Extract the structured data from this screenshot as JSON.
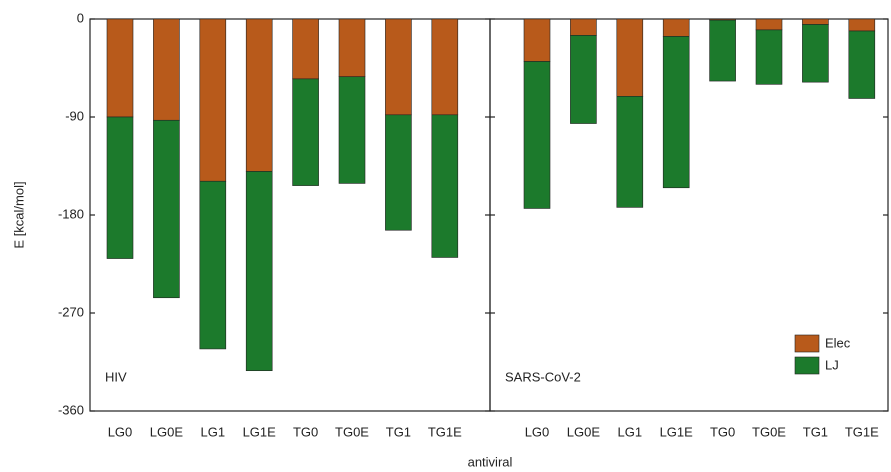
{
  "chart_data": {
    "type": "bar",
    "stacked": true,
    "ylabel": "E [kcal/mol]",
    "xlabel": "antiviral",
    "ylim": [
      -360,
      0
    ],
    "yticks": [
      0,
      -90,
      -180,
      -270,
      -360
    ],
    "legend": "lower right",
    "panels": [
      {
        "label": "HIV",
        "categories": [
          "LG0",
          "LG0E",
          "LG1",
          "LG1E",
          "TG0",
          "TG0E",
          "TG1",
          "TG1E"
        ],
        "series": [
          {
            "name": "Elec",
            "color": "#b85a1b",
            "values": [
              -90,
              -93,
              -149,
              -140,
              -55,
              -53,
              -88,
              -88
            ]
          },
          {
            "name": "LJ",
            "color": "#1c7a2c",
            "values": [
              -130,
              -163,
              -154,
              -183,
              -98,
              -98,
              -106,
              -131
            ]
          }
        ]
      },
      {
        "label": "SARS-CoV-2",
        "categories": [
          "LG0",
          "LG0E",
          "LG1",
          "LG1E",
          "TG0",
          "TG0E",
          "TG1",
          "TG1E"
        ],
        "series": [
          {
            "name": "Elec",
            "color": "#b85a1b",
            "values": [
              -39,
              -15,
              -71,
              -16,
              -1,
              -10,
              -5,
              -11
            ]
          },
          {
            "name": "LJ",
            "color": "#1c7a2c",
            "values": [
              -135,
              -81,
              -102,
              -139,
              -56,
              -50,
              -53,
              -62
            ]
          }
        ]
      }
    ]
  }
}
